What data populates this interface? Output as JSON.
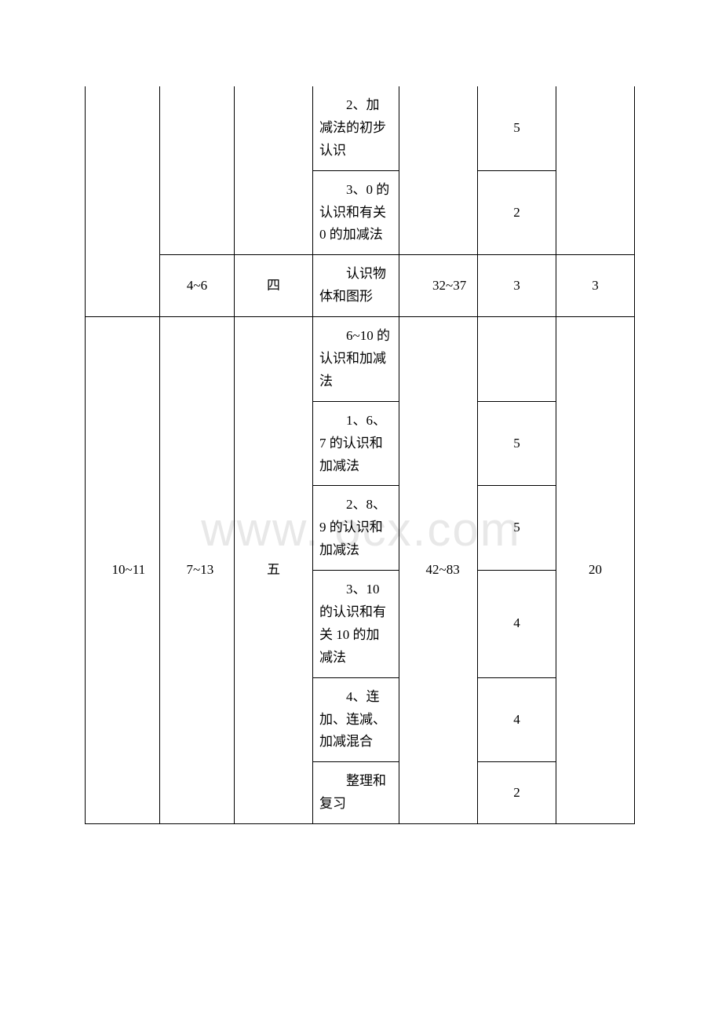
{
  "watermark": "www.    ocx.com",
  "table": {
    "group1": {
      "row1": {
        "col4": "2、加减法的初步认识",
        "col6": "5"
      },
      "row2": {
        "col4": "3、0 的认识和有关 0 的加减法",
        "col6": "2"
      },
      "row3": {
        "col2": "4~6",
        "col3": "四",
        "col4": "认识物体和图形",
        "col5": "32~37",
        "col6": "3",
        "col7": "3"
      }
    },
    "group2": {
      "col1": "10~11",
      "col2": "7~13",
      "col3": "五",
      "col5": "42~83",
      "col7": "20",
      "rows": [
        {
          "col4": "6~10 的认识和加减法",
          "col6": ""
        },
        {
          "col4": "1、6、7 的认识和加减法",
          "col6": "5"
        },
        {
          "col4": "2、8、9 的认识和加减法",
          "col6": "5"
        },
        {
          "col4": "3、10 的认识和有关 10 的加减法",
          "col6": "4"
        },
        {
          "col4": "4、连加、连减、加减混合",
          "col6": "4"
        },
        {
          "col4": "整理和复习",
          "col6": "2"
        }
      ]
    }
  }
}
